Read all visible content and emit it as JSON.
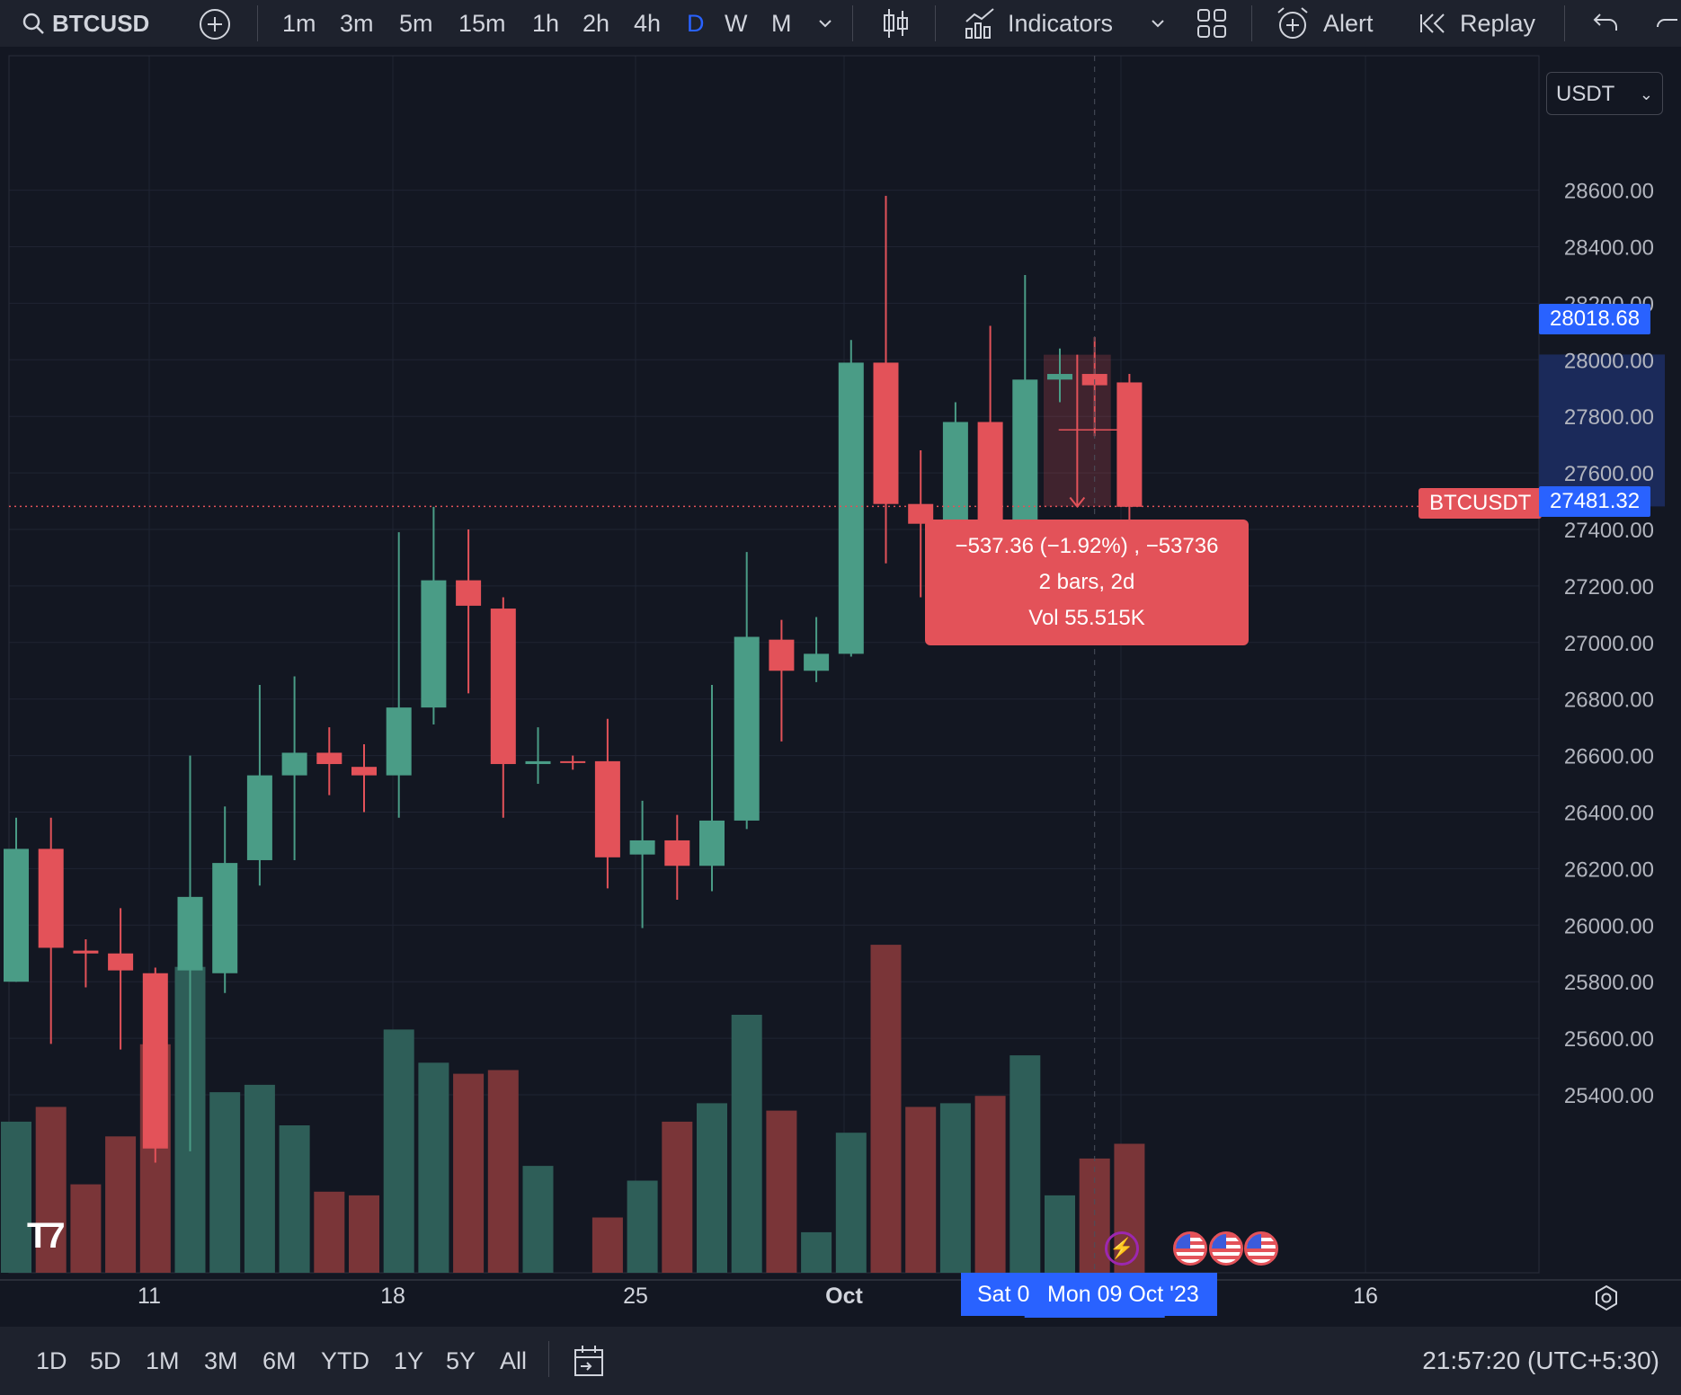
{
  "toolbar": {
    "symbol": "BTCUSD",
    "intervals": [
      "1m",
      "3m",
      "5m",
      "15m",
      "1h",
      "2h",
      "4h",
      "D",
      "W",
      "M"
    ],
    "active_interval": "D",
    "indicators_label": "Indicators",
    "alert_label": "Alert",
    "replay_label": "Replay"
  },
  "price_axis": {
    "currency_select": "USDT",
    "ticks": [
      "28600.00",
      "28400.00",
      "28200.00",
      "28000.00",
      "27800.00",
      "27600.00",
      "27400.00",
      "27200.00",
      "27000.00",
      "26800.00",
      "26600.00",
      "26400.00",
      "26200.00",
      "26000.00",
      "25800.00",
      "25600.00",
      "25400.00"
    ],
    "high_label": "28018.68",
    "last_price_label": "27481.32",
    "last_price_symbol": "BTCUSDT"
  },
  "time_axis": {
    "labels": [
      "11",
      "18",
      "25",
      "Oct",
      "16"
    ],
    "crosshair_label_left": "Sat 0",
    "crosshair_label": "Mon 09 Oct '23"
  },
  "measure_tooltip": {
    "line1": "−537.36 (−1.92%) , −53736",
    "line2": "2 bars, 2d",
    "line3": "Vol 55.515K"
  },
  "bottom_bar": {
    "ranges": [
      "1D",
      "5D",
      "1M",
      "3M",
      "6M",
      "YTD",
      "1Y",
      "5Y",
      "All"
    ],
    "clock": "21:57:20 (UTC+5:30)"
  },
  "colors": {
    "up": "#4a9c86",
    "down": "#e35259",
    "accent": "#2962ff",
    "bg": "#131722",
    "panel": "#1e222d"
  },
  "chart_data": {
    "type": "candlestick",
    "symbol": "BTCUSDT",
    "interval": "1D",
    "ylim": [
      25150,
      28700
    ],
    "candles": [
      {
        "o": 25800,
        "h": 26380,
        "l": 25800,
        "c": 26270,
        "v": 41
      },
      {
        "o": 26270,
        "h": 26380,
        "l": 25580,
        "c": 25920,
        "v": 45
      },
      {
        "o": 25910,
        "h": 25950,
        "l": 25780,
        "c": 25900,
        "v": 24
      },
      {
        "o": 25900,
        "h": 26060,
        "l": 25560,
        "c": 25840,
        "v": 37
      },
      {
        "o": 25830,
        "h": 25850,
        "l": 25160,
        "c": 25210,
        "v": 62
      },
      {
        "o": 25840,
        "h": 26600,
        "l": 25200,
        "c": 26100,
        "v": 83
      },
      {
        "o": 25830,
        "h": 26420,
        "l": 25760,
        "c": 26220,
        "v": 49
      },
      {
        "o": 26230,
        "h": 26850,
        "l": 26140,
        "c": 26530,
        "v": 51
      },
      {
        "o": 26530,
        "h": 26880,
        "l": 26230,
        "c": 26610,
        "v": 40
      },
      {
        "o": 26610,
        "h": 26700,
        "l": 26460,
        "c": 26570,
        "v": 22
      },
      {
        "o": 26560,
        "h": 26640,
        "l": 26400,
        "c": 26530,
        "v": 21
      },
      {
        "o": 26530,
        "h": 27390,
        "l": 26380,
        "c": 26770,
        "v": 66
      },
      {
        "o": 26770,
        "h": 27480,
        "l": 26710,
        "c": 27220,
        "v": 57
      },
      {
        "o": 27220,
        "h": 27400,
        "l": 26820,
        "c": 27130,
        "v": 54
      },
      {
        "o": 27120,
        "h": 27160,
        "l": 26380,
        "c": 26570,
        "v": 55
      },
      {
        "o": 26570,
        "h": 26700,
        "l": 26500,
        "c": 26580,
        "v": 29
      },
      {
        "o": 26580,
        "h": 26600,
        "l": 26550,
        "c": 26575,
        "v": 0
      },
      {
        "o": 26580,
        "h": 26730,
        "l": 26130,
        "c": 26240,
        "v": 15
      },
      {
        "o": 26250,
        "h": 26440,
        "l": 25990,
        "c": 26300,
        "v": 25
      },
      {
        "o": 26300,
        "h": 26390,
        "l": 26090,
        "c": 26210,
        "v": 41
      },
      {
        "o": 26210,
        "h": 26850,
        "l": 26120,
        "c": 26370,
        "v": 46
      },
      {
        "o": 26370,
        "h": 27320,
        "l": 26340,
        "c": 27020,
        "v": 70
      },
      {
        "o": 27010,
        "h": 27080,
        "l": 26650,
        "c": 26900,
        "v": 44
      },
      {
        "o": 26900,
        "h": 27090,
        "l": 26860,
        "c": 26960,
        "v": 11
      },
      {
        "o": 26960,
        "h": 28070,
        "l": 26950,
        "c": 27990,
        "v": 38
      },
      {
        "o": 27990,
        "h": 28580,
        "l": 27280,
        "c": 27490,
        "v": 89
      },
      {
        "o": 27490,
        "h": 27680,
        "l": 27160,
        "c": 27420,
        "v": 45
      },
      {
        "o": 27430,
        "h": 27850,
        "l": 27410,
        "c": 27780,
        "v": 46
      },
      {
        "o": 27780,
        "h": 28120,
        "l": 27380,
        "c": 27400,
        "v": 48
      },
      {
        "o": 27410,
        "h": 28300,
        "l": 27400,
        "c": 27930,
        "v": 59
      },
      {
        "o": 27930,
        "h": 28040,
        "l": 27850,
        "c": 27950,
        "v": 21
      },
      {
        "o": 27950,
        "h": 28080,
        "l": 27730,
        "c": 27910,
        "v": 31
      },
      {
        "o": 27920,
        "h": 27950,
        "l": 27400,
        "c": 27480,
        "v": 35
      }
    ]
  }
}
